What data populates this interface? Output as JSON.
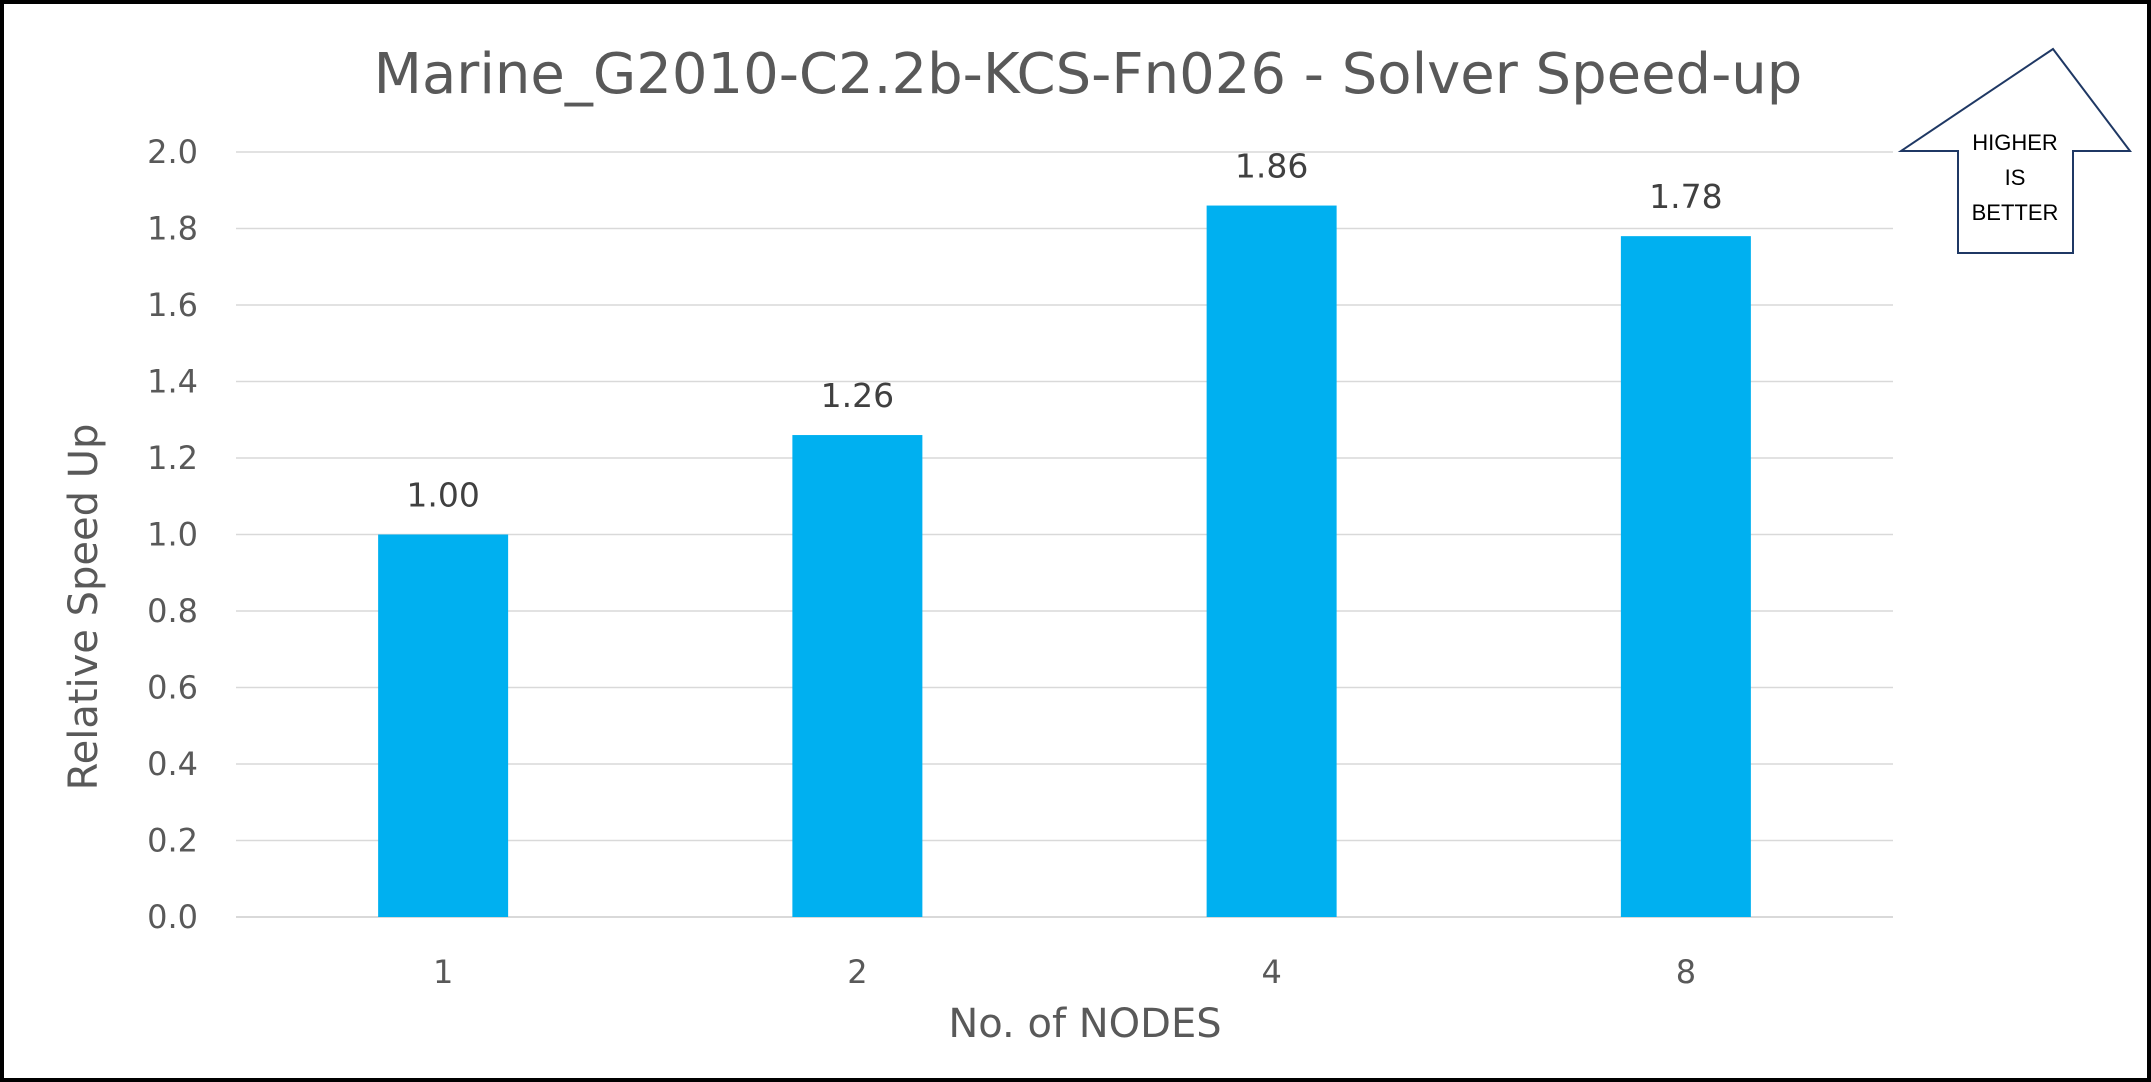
{
  "chart_data": {
    "type": "bar",
    "title": "Marine_G2010-C2.2b-KCS-Fn026 - Solver Speed-up",
    "xlabel": "No. of NODES",
    "ylabel": "Relative Speed Up",
    "categories": [
      "1",
      "2",
      "4",
      "8"
    ],
    "values": [
      1.0,
      1.26,
      1.86,
      1.78
    ],
    "data_labels": [
      "1.00",
      "1.26",
      "1.86",
      "1.78"
    ],
    "ylim": [
      0,
      2.0
    ],
    "yticks": [
      "0.0",
      "0.2",
      "0.4",
      "0.6",
      "0.8",
      "1.0",
      "1.2",
      "1.4",
      "1.6",
      "1.8",
      "2.0"
    ],
    "grid": true,
    "bar_color": "#00B0F0",
    "gridline_color": "#D9D9D9",
    "text_color": "#595959"
  },
  "callout": {
    "lines": [
      "HIGHER",
      "IS",
      "BETTER"
    ]
  }
}
